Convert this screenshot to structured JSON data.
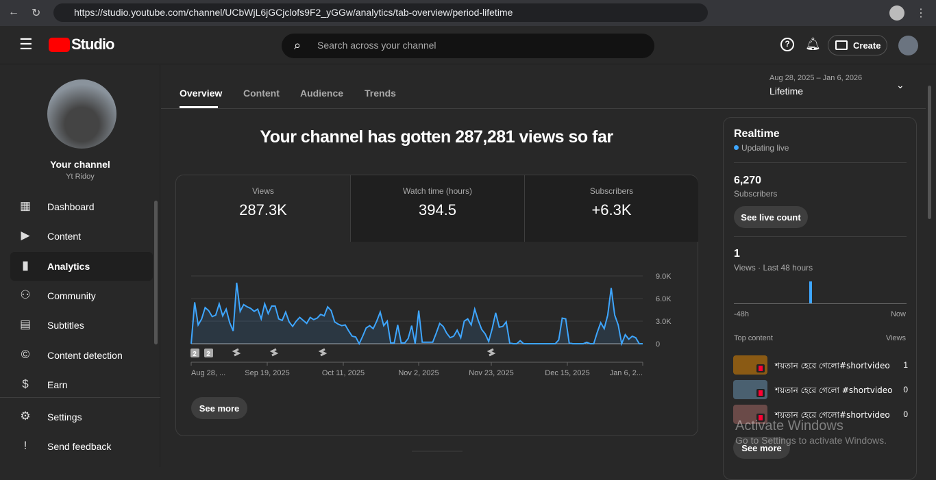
{
  "browser": {
    "url": "https://studio.youtube.com/channel/UCbWjL6jGCjclofs9F2_yGGw/analytics/tab-overview/period-lifetime"
  },
  "header": {
    "logo": "Studio",
    "search_placeholder": "Search across your channel",
    "create_label": "Create"
  },
  "sidebar": {
    "channel_title": "Your channel",
    "channel_name": "Yt Ridoy",
    "items": [
      {
        "label": "Dashboard",
        "icon": "dashboard-icon"
      },
      {
        "label": "Content",
        "icon": "content-icon"
      },
      {
        "label": "Analytics",
        "icon": "analytics-icon",
        "active": true
      },
      {
        "label": "Community",
        "icon": "community-icon"
      },
      {
        "label": "Subtitles",
        "icon": "subtitles-icon"
      },
      {
        "label": "Content detection",
        "icon": "copyright-icon"
      },
      {
        "label": "Earn",
        "icon": "dollar-icon"
      }
    ],
    "bottom": [
      {
        "label": "Settings",
        "icon": "gear-icon"
      },
      {
        "label": "Send feedback",
        "icon": "feedback-icon"
      }
    ]
  },
  "tabs": [
    {
      "label": "Overview",
      "active": true
    },
    {
      "label": "Content"
    },
    {
      "label": "Audience"
    },
    {
      "label": "Trends"
    }
  ],
  "period": {
    "range": "Aug 28, 2025 – Jan 6, 2026",
    "label": "Lifetime"
  },
  "headline": "Your channel has gotten 287,281 views so far",
  "metrics": [
    {
      "label": "Views",
      "value": "287.3K"
    },
    {
      "label": "Watch time (hours)",
      "value": "394.5"
    },
    {
      "label": "Subscribers",
      "value": "+6.3K"
    }
  ],
  "see_more": "See more",
  "accent": "#3ea6ff",
  "chart_data": {
    "type": "area",
    "ylim": [
      0,
      9000
    ],
    "yticks": [
      "9.0K",
      "6.0K",
      "3.0K",
      "0"
    ],
    "ytick_values": [
      9000,
      6000,
      3000,
      0
    ],
    "x_start": "2025-08-28",
    "x_end": "2026-01-06",
    "xticks": [
      "Aug 28, ...",
      "Sep 19, 2025",
      "Oct 11, 2025",
      "Nov 2, 2025",
      "Nov 23, 2025",
      "Dec 15, 2025",
      "Jan 6, 2..."
    ],
    "grid": true,
    "color": "#3ea6ff",
    "values": [
      0,
      5500,
      2500,
      3300,
      4800,
      4400,
      3600,
      3800,
      5300,
      3700,
      4600,
      2800,
      1700,
      8100,
      4300,
      5200,
      4900,
      4700,
      4300,
      4600,
      3300,
      5300,
      4000,
      5000,
      5000,
      3300,
      3100,
      4200,
      2900,
      2300,
      3000,
      3500,
      3100,
      2700,
      3500,
      3200,
      3400,
      3900,
      3700,
      4900,
      4400,
      2900,
      2600,
      2400,
      2500,
      1700,
      1000,
      900,
      0,
      1000,
      2100,
      2400,
      2000,
      3000,
      4200,
      2400,
      3000,
      100,
      100,
      2500,
      100,
      100,
      700,
      2400,
      0,
      4400,
      200,
      200,
      200,
      200,
      1400,
      2700,
      2300,
      1400,
      800,
      1000,
      1800,
      800,
      3000,
      3300,
      2500,
      4600,
      3100,
      1900,
      1300,
      300,
      2000,
      4100,
      2200,
      2300,
      2900,
      100,
      0,
      0,
      400,
      0,
      0,
      0,
      0,
      0,
      0,
      0,
      0,
      0,
      0,
      500,
      3400,
      3300,
      100,
      0,
      0,
      0,
      0,
      200,
      0,
      0,
      1500,
      2800,
      2000,
      3800,
      7400,
      3800,
      2500,
      0,
      1200,
      600,
      1000,
      800,
      0,
      0
    ],
    "markers": [
      {
        "type": "badge",
        "label": "2"
      },
      {
        "type": "badge",
        "label": "2"
      },
      {
        "type": "short"
      },
      {
        "type": "short"
      },
      {
        "type": "short"
      },
      {
        "type": "short"
      }
    ]
  },
  "realtime": {
    "title": "Realtime",
    "status": "Updating live",
    "subs": "6,270",
    "subs_label": "Subscribers",
    "live_btn": "See live count",
    "views": "1",
    "views_label": "Views · Last 48 hours",
    "axis_start": "-48h",
    "axis_end": "Now",
    "top_label": "Top content",
    "views_col": "Views",
    "items": [
      {
        "title": "শয়তান হেরে গেলো#shortvideo",
        "views": "1",
        "color": "#8a5a14"
      },
      {
        "title": "শয়তান হেরে গেলো #shortvideo",
        "views": "0",
        "color": "#4a6070"
      },
      {
        "title": "শয়তান হেরে গেলো#shortvideo",
        "views": "0",
        "color": "#6a4a48"
      }
    ],
    "see_more": "See more"
  },
  "watermark": {
    "title": "Activate Windows",
    "sub": "Go to Settings to activate Windows."
  }
}
